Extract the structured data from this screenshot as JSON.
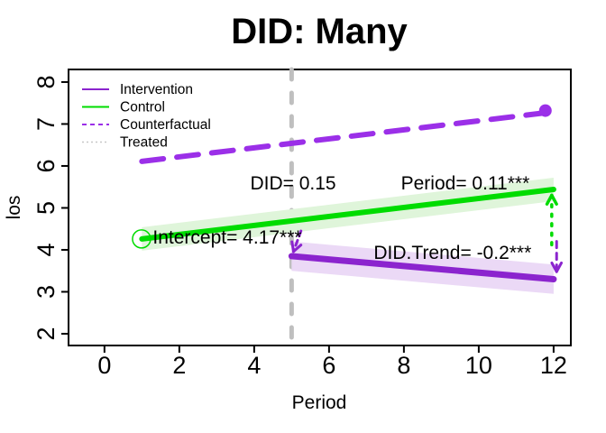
{
  "chart_data": {
    "type": "line",
    "title": "DID: Many",
    "xlabel": "Period",
    "ylabel": "los",
    "xlim": [
      -0.96,
      12.46
    ],
    "ylim": [
      1.72,
      8.3
    ],
    "xticks": [
      0,
      2,
      4,
      6,
      8,
      10,
      12
    ],
    "yticks": [
      2,
      3,
      4,
      5,
      6,
      7,
      8
    ],
    "grid": false,
    "background": "#FFFFFF",
    "frame_color": "#000000",
    "series": [
      {
        "name": "Treated",
        "kind": "vline",
        "x": 5,
        "color": "#BFBFBF",
        "width": 5,
        "dash": "11 15"
      },
      {
        "name": "Counterfactual",
        "kind": "line",
        "color": "#9B2FE8",
        "width": 6,
        "dash": "24 15",
        "points": [
          [
            1,
            6.11
          ],
          [
            12,
            7.29
          ]
        ],
        "end_dot": [
          11.78,
          7.32
        ],
        "dot_radius": 7
      },
      {
        "name": "Control",
        "kind": "line",
        "color": "#00DC00",
        "width": 6,
        "band": 0.28,
        "band_color": "#DFF5DA",
        "points": [
          [
            1,
            4.26
          ],
          [
            12,
            5.44
          ]
        ],
        "start_circle": [
          0.99,
          4.26
        ],
        "circle_radius": 10
      },
      {
        "name": "Intervention",
        "kind": "line",
        "color": "#8B24CE",
        "width": 7,
        "band": 0.35,
        "band_color": "#EBD9F6",
        "points": [
          [
            5,
            3.85
          ],
          [
            12,
            3.3
          ]
        ]
      }
    ],
    "arrows": [
      {
        "name": "did-drop-arrow",
        "color": "#8B24CE",
        "dash": "6 5",
        "width": 3,
        "from": [
          5.25,
          4.45
        ],
        "to": [
          5.05,
          3.96
        ]
      },
      {
        "name": "control-gap-arrow",
        "color": "#00DC00",
        "dash": "2.5 8",
        "width": 3.5,
        "from": [
          11.95,
          4.12
        ],
        "to": [
          11.95,
          5.3
        ]
      },
      {
        "name": "intervention-gap-arrow",
        "color": "#8B24CE",
        "dash": "7 6",
        "width": 3,
        "from": [
          12.08,
          4.2
        ],
        "to": [
          12.08,
          3.48
        ]
      }
    ],
    "annotations": [
      {
        "text": "DID= 0.15",
        "x": 5.04,
        "y": 5.59
      },
      {
        "text": "Period= 0.11***",
        "x": 9.64,
        "y": 5.59
      },
      {
        "text": "Intercept= 4.17***",
        "x": 3.28,
        "y": 4.3
      },
      {
        "text": "DID.Trend= -0.2***",
        "x": 9.3,
        "y": 3.94
      }
    ],
    "legend": {
      "position": "top-left",
      "items": [
        {
          "label": "Intervention",
          "color": "#8B24CE",
          "dash": "",
          "width": 2
        },
        {
          "label": "Control",
          "color": "#00DC00",
          "dash": "",
          "width": 2
        },
        {
          "label": "Counterfactual",
          "color": "#9B2FE8",
          "dash": "5 4",
          "width": 2
        },
        {
          "label": "Treated",
          "color": "#C8C8C8",
          "dash": "2 3",
          "width": 1.5
        }
      ]
    }
  }
}
